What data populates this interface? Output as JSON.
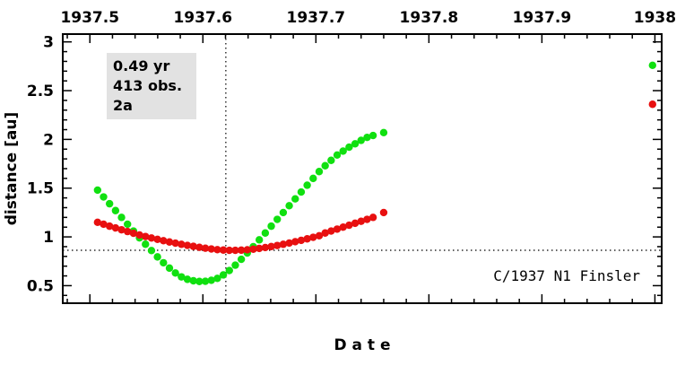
{
  "chart_data": {
    "type": "scatter",
    "title": "",
    "xlabel": "D a t e",
    "ylabel": "distance [au]",
    "xlim": [
      1937.476,
      1938.006
    ],
    "ylim": [
      0.32,
      3.08
    ],
    "x_ticks": [
      1937.5,
      1937.6,
      1937.7,
      1937.8,
      1937.9,
      1938.0
    ],
    "x_tick_labels": [
      "1937.5",
      "1937.6",
      "1937.7",
      "1937.8",
      "1937.9",
      "1938"
    ],
    "y_ticks": [
      0.5,
      1,
      1.5,
      2,
      2.5,
      3
    ],
    "y_tick_labels": [
      "0.5",
      "1",
      "1.5",
      "2",
      "2.5",
      "3"
    ],
    "grid": false,
    "legend": "none",
    "reference_lines": {
      "perihelion_date": 1937.6203,
      "perihelion_distance": 0.863
    },
    "info_box": [
      "0.49 yr",
      "413 obs.",
      "2a"
    ],
    "designation": "C/1937 N1 Finsler",
    "series": [
      {
        "color": "#10e010",
        "points": [
          [
            1937.5068,
            1.48
          ],
          [
            1937.5121,
            1.41
          ],
          [
            1937.5174,
            1.34
          ],
          [
            1937.5227,
            1.27
          ],
          [
            1937.528,
            1.2
          ],
          [
            1937.5333,
            1.13
          ],
          [
            1937.5386,
            1.06
          ],
          [
            1937.5439,
            0.99
          ],
          [
            1937.5492,
            0.925
          ],
          [
            1937.5545,
            0.86
          ],
          [
            1937.5598,
            0.795
          ],
          [
            1937.5651,
            0.735
          ],
          [
            1937.5704,
            0.68
          ],
          [
            1937.5757,
            0.63
          ],
          [
            1937.581,
            0.59
          ],
          [
            1937.5863,
            0.565
          ],
          [
            1937.5916,
            0.55
          ],
          [
            1937.5969,
            0.543
          ],
          [
            1937.6022,
            0.545
          ],
          [
            1937.6075,
            0.555
          ],
          [
            1937.6128,
            0.575
          ],
          [
            1937.6181,
            0.61
          ],
          [
            1937.6234,
            0.655
          ],
          [
            1937.6287,
            0.71
          ],
          [
            1937.634,
            0.77
          ],
          [
            1937.6393,
            0.835
          ],
          [
            1937.6446,
            0.9
          ],
          [
            1937.6499,
            0.97
          ],
          [
            1937.6552,
            1.04
          ],
          [
            1937.6605,
            1.11
          ],
          [
            1937.6658,
            1.18
          ],
          [
            1937.6711,
            1.25
          ],
          [
            1937.6764,
            1.32
          ],
          [
            1937.6817,
            1.39
          ],
          [
            1937.687,
            1.46
          ],
          [
            1937.6923,
            1.53
          ],
          [
            1937.6976,
            1.6
          ],
          [
            1937.7029,
            1.67
          ],
          [
            1937.7082,
            1.73
          ],
          [
            1937.7135,
            1.785
          ],
          [
            1937.7188,
            1.84
          ],
          [
            1937.7241,
            1.88
          ],
          [
            1937.7294,
            1.92
          ],
          [
            1937.7347,
            1.955
          ],
          [
            1937.74,
            1.99
          ],
          [
            1937.7453,
            2.02
          ],
          [
            1937.7506,
            2.04
          ],
          [
            1937.76,
            2.07
          ],
          [
            1937.9979,
            2.76
          ]
        ]
      },
      {
        "color": "#e81010",
        "points": [
          [
            1937.5068,
            1.15
          ],
          [
            1937.5121,
            1.13
          ],
          [
            1937.5174,
            1.11
          ],
          [
            1937.5227,
            1.092
          ],
          [
            1937.528,
            1.073
          ],
          [
            1937.5333,
            1.055
          ],
          [
            1937.5386,
            1.037
          ],
          [
            1937.5439,
            1.02
          ],
          [
            1937.5492,
            1.004
          ],
          [
            1937.5545,
            0.989
          ],
          [
            1937.5598,
            0.975
          ],
          [
            1937.5651,
            0.961
          ],
          [
            1937.5704,
            0.948
          ],
          [
            1937.5757,
            0.936
          ],
          [
            1937.581,
            0.924
          ],
          [
            1937.5863,
            0.913
          ],
          [
            1937.5916,
            0.903
          ],
          [
            1937.5969,
            0.893
          ],
          [
            1937.6022,
            0.884
          ],
          [
            1937.6075,
            0.876
          ],
          [
            1937.6128,
            0.869
          ],
          [
            1937.6181,
            0.865
          ],
          [
            1937.6234,
            0.862
          ],
          [
            1937.6287,
            0.862
          ],
          [
            1937.634,
            0.864
          ],
          [
            1937.6393,
            0.868
          ],
          [
            1937.6446,
            0.874
          ],
          [
            1937.6499,
            0.882
          ],
          [
            1937.6552,
            0.891
          ],
          [
            1937.6605,
            0.901
          ],
          [
            1937.6658,
            0.912
          ],
          [
            1937.6711,
            0.924
          ],
          [
            1937.6764,
            0.937
          ],
          [
            1937.6817,
            0.951
          ],
          [
            1937.687,
            0.965
          ],
          [
            1937.6923,
            0.98
          ],
          [
            1937.6976,
            0.996
          ],
          [
            1937.7029,
            1.012
          ],
          [
            1937.7082,
            1.04
          ],
          [
            1937.7135,
            1.06
          ],
          [
            1937.7188,
            1.08
          ],
          [
            1937.7241,
            1.1
          ],
          [
            1937.7294,
            1.12
          ],
          [
            1937.7347,
            1.14
          ],
          [
            1937.74,
            1.16
          ],
          [
            1937.7453,
            1.18
          ],
          [
            1937.7506,
            1.2
          ],
          [
            1937.76,
            1.25
          ],
          [
            1937.9979,
            2.36
          ]
        ]
      }
    ]
  }
}
